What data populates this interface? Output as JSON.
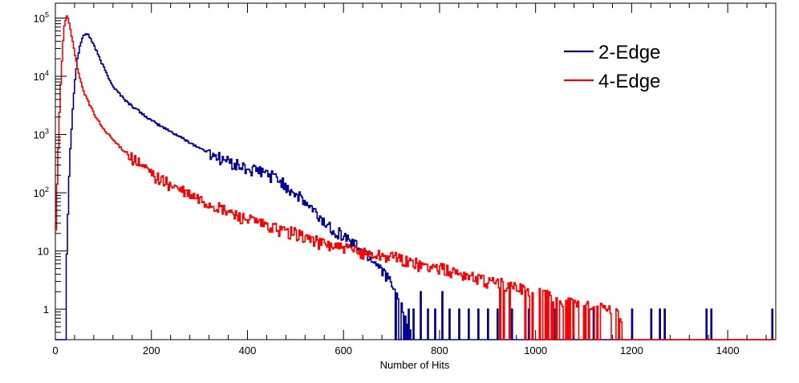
{
  "chart_data": {
    "type": "line",
    "title": "",
    "xlabel": "Number of Hits",
    "ylabel": "",
    "xlim": [
      0,
      1500
    ],
    "ylim": [
      0.3,
      180000
    ],
    "yscale": "log",
    "grid": false,
    "legend_position": "top-right",
    "x_ticks": [
      {
        "value": 0,
        "label": "0"
      },
      {
        "value": 200,
        "label": "200"
      },
      {
        "value": 400,
        "label": "400"
      },
      {
        "value": 600,
        "label": "600"
      },
      {
        "value": 800,
        "label": "800"
      },
      {
        "value": 1000,
        "label": "1000"
      },
      {
        "value": 1200,
        "label": "1200"
      },
      {
        "value": 1400,
        "label": "1400"
      }
    ],
    "y_ticks": [
      {
        "value": 1,
        "label": "1"
      },
      {
        "value": 10,
        "label": "10"
      },
      {
        "value": 100,
        "base": "10",
        "exp": "2"
      },
      {
        "value": 1000,
        "base": "10",
        "exp": "3"
      },
      {
        "value": 10000,
        "base": "10",
        "exp": "4"
      },
      {
        "value": 100000,
        "base": "10",
        "exp": "5"
      }
    ],
    "series": [
      {
        "name": "2-Edge",
        "color": "#000099",
        "points": [
          [
            0,
            0.3
          ],
          [
            15,
            0.3
          ],
          [
            20,
            2
          ],
          [
            25,
            50
          ],
          [
            30,
            600
          ],
          [
            35,
            2800
          ],
          [
            40,
            9000
          ],
          [
            45,
            20000
          ],
          [
            50,
            33000
          ],
          [
            55,
            45000
          ],
          [
            60,
            52000
          ],
          [
            63,
            55000
          ],
          [
            67,
            52000
          ],
          [
            72,
            45000
          ],
          [
            80,
            33000
          ],
          [
            90,
            21000
          ],
          [
            100,
            14000
          ],
          [
            120,
            6500
          ],
          [
            150,
            3500
          ],
          [
            200,
            1700
          ],
          [
            250,
            1000
          ],
          [
            300,
            580
          ],
          [
            350,
            370
          ],
          [
            400,
            250
          ],
          [
            430,
            230
          ],
          [
            460,
            180
          ],
          [
            500,
            95
          ],
          [
            530,
            55
          ],
          [
            560,
            30
          ],
          [
            600,
            18
          ],
          [
            640,
            10
          ],
          [
            680,
            5
          ],
          [
            700,
            2.5
          ],
          [
            720,
            1.2
          ],
          [
            740,
            0.3
          ],
          [
            1495,
            0.3
          ]
        ],
        "spikes": [
          [
            735,
            1
          ],
          [
            745,
            1
          ],
          [
            760,
            2
          ],
          [
            775,
            1
          ],
          [
            790,
            1
          ],
          [
            805,
            2
          ],
          [
            820,
            1
          ],
          [
            840,
            1
          ],
          [
            860,
            1
          ],
          [
            880,
            1
          ],
          [
            900,
            1
          ],
          [
            920,
            1
          ],
          [
            950,
            1
          ],
          [
            985,
            1
          ],
          [
            1040,
            1
          ],
          [
            1120,
            1
          ],
          [
            1200,
            1
          ],
          [
            1240,
            1
          ],
          [
            1258,
            1
          ],
          [
            1268,
            1
          ],
          [
            1355,
            1
          ],
          [
            1365,
            1
          ],
          [
            1492,
            1
          ]
        ]
      },
      {
        "name": "4-Edge",
        "color": "#ff0000",
        "points": [
          [
            0,
            30
          ],
          [
            3,
            180
          ],
          [
            6,
            1100
          ],
          [
            9,
            5000
          ],
          [
            12,
            15000
          ],
          [
            15,
            40000
          ],
          [
            18,
            80000
          ],
          [
            22,
            110000
          ],
          [
            25,
            100000
          ],
          [
            30,
            65000
          ],
          [
            35,
            40000
          ],
          [
            40,
            22000
          ],
          [
            50,
            9000
          ],
          [
            60,
            5000
          ],
          [
            80,
            2200
          ],
          [
            100,
            1200
          ],
          [
            130,
            650
          ],
          [
            170,
            330
          ],
          [
            200,
            210
          ],
          [
            250,
            120
          ],
          [
            300,
            75
          ],
          [
            350,
            50
          ],
          [
            400,
            35
          ],
          [
            450,
            25
          ],
          [
            500,
            20
          ],
          [
            550,
            14
          ],
          [
            600,
            11
          ],
          [
            650,
            9
          ],
          [
            700,
            8
          ],
          [
            750,
            6
          ],
          [
            800,
            5
          ],
          [
            850,
            4
          ],
          [
            900,
            3
          ],
          [
            950,
            2.5
          ],
          [
            1000,
            2
          ],
          [
            1050,
            1.5
          ],
          [
            1100,
            1.2
          ],
          [
            1150,
            1
          ],
          [
            1175,
            0.8
          ],
          [
            1180,
            0.3
          ],
          [
            1495,
            0.3
          ]
        ]
      }
    ]
  }
}
